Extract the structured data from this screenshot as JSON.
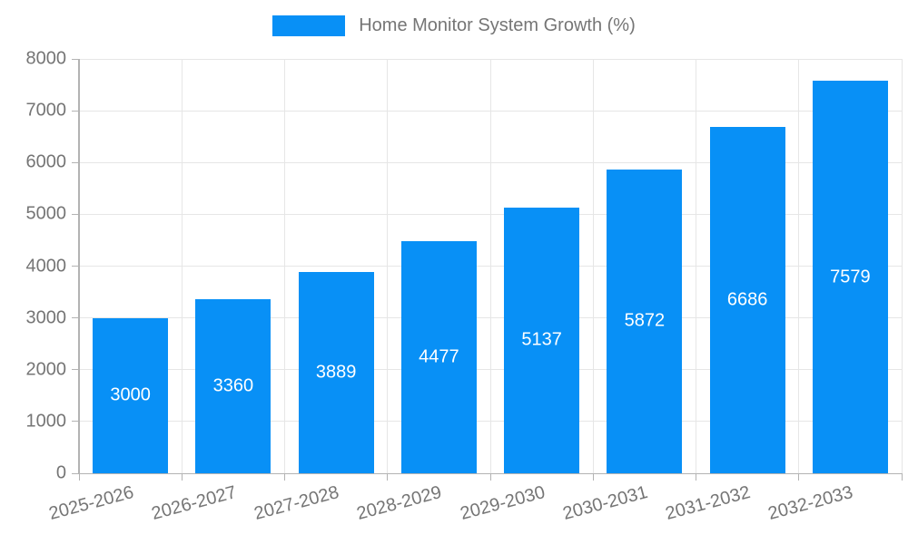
{
  "chart": {
    "colors": {
      "bar": "#0890f6",
      "grid": "#e6e6e6",
      "axis": "#b3b3b3",
      "tick_text": "#757575",
      "legend_text": "#757575",
      "value_text": "#ffffff",
      "background": "#ffffff"
    }
  },
  "chart_data": {
    "type": "bar",
    "series_name": "Home Monitor System Growth (%)",
    "categories": [
      "2025-2026",
      "2026-2027",
      "2027-2028",
      "2028-2029",
      "2029-2030",
      "2030-2031",
      "2031-2032",
      "2032-2033"
    ],
    "values": [
      3000,
      3360,
      3889,
      4477,
      5137,
      5872,
      6686,
      7579
    ],
    "ylim": [
      0,
      8000
    ],
    "ytick_step": 1000,
    "grid": true,
    "legend_position": "top",
    "value_label_position": "inside-center",
    "xlabel": "",
    "ylabel": ""
  }
}
